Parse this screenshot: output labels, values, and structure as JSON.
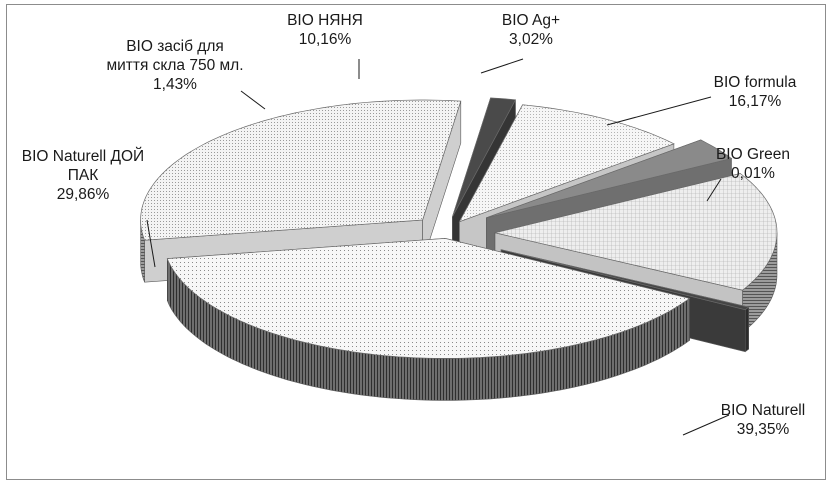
{
  "chart_data": {
    "type": "pie",
    "style": "3d-exploded",
    "categories": [
      "BIO Naturell",
      "BIO Naturell  ДОЙ ПАК",
      "BIO засіб для миття скла 750 мл.",
      "BIO НЯНЯ",
      "BIO Ag+",
      "BIO formula",
      "BIO Green"
    ],
    "values": [
      39.35,
      29.86,
      1.43,
      10.16,
      3.02,
      16.17,
      0.01
    ],
    "value_labels": [
      "39,35%",
      "29,86%",
      "1,43%",
      "10,16%",
      "3,02%",
      "16,17%",
      "0,01%"
    ],
    "label_lines": [
      [
        "BIO Naturell"
      ],
      [
        "BIO Naturell  ДОЙ",
        "ПАК"
      ],
      [
        "BIO засіб для",
        "миття скла 750 мл."
      ],
      [
        "BIO НЯНЯ"
      ],
      [
        "BIO Ag+"
      ],
      [
        "BIO formula"
      ],
      [
        "BIO Green"
      ]
    ],
    "colors": {
      "top_fill": "#f2f2f2",
      "edge": "#7a7a7a",
      "dark_slice": "#4a4a4a",
      "mid_slice": "#8a8a8a"
    },
    "legend": "none"
  }
}
